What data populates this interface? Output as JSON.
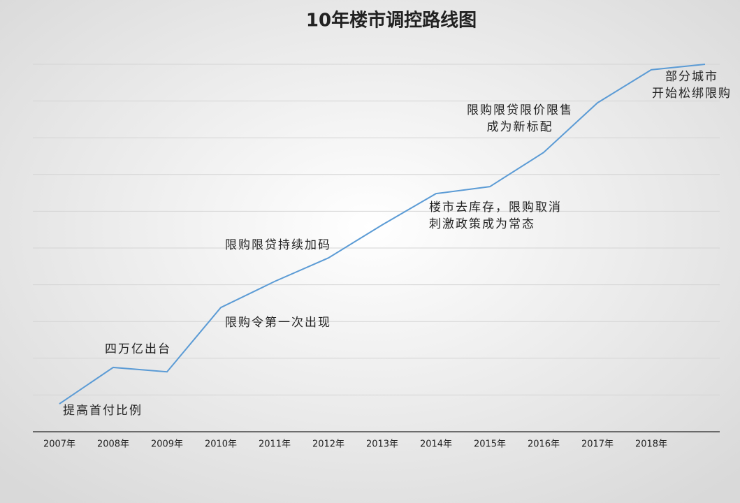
{
  "chart_data": {
    "type": "line",
    "title": "10年楼市调控路线图",
    "categories": [
      "2007年",
      "2008年",
      "2009年",
      "2010年",
      "2011年",
      "2012年",
      "2013年",
      "2014年",
      "2015年",
      "2016年",
      "2017年",
      "2018年",
      null
    ],
    "series": [
      {
        "color": "#5b9bd5",
        "values": [
          0.76,
          1.75,
          1.63,
          3.38,
          4.09,
          4.73,
          5.63,
          6.48,
          6.67,
          7.6,
          8.95,
          9.85,
          10.0
        ]
      }
    ],
    "ylim": [
      0,
      10
    ],
    "yticks": [
      1,
      2,
      3,
      4,
      5,
      6,
      7,
      8,
      9,
      10
    ],
    "grid": true,
    "annotations": [
      {
        "lines": [
          "提高首付比例"
        ]
      },
      {
        "lines": [
          "四万亿出台"
        ]
      },
      {
        "lines": [
          "限购令第一次出现"
        ]
      },
      {
        "lines": [
          "限购限贷持续加码"
        ]
      },
      {
        "lines": [
          "楼市去库存，限购取消",
          "刺激政策成为常态"
        ]
      },
      {
        "lines": [
          "限购限贷限价限售",
          "成为新标配"
        ]
      },
      {
        "lines": [
          "部分城市",
          "开始松绑限购"
        ]
      }
    ]
  }
}
